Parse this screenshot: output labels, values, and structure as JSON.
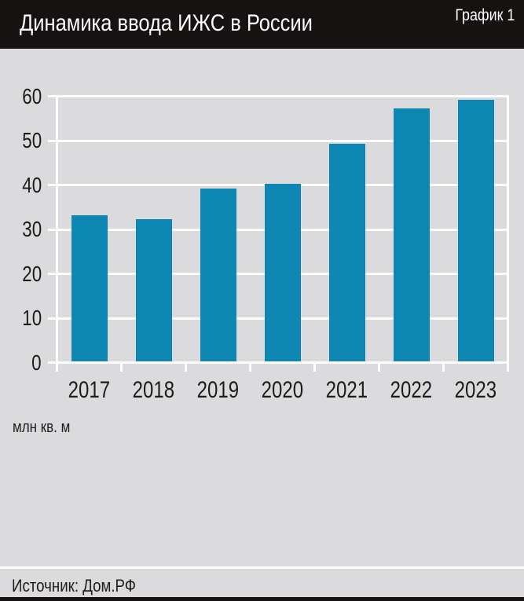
{
  "header": {
    "title": "Динамика ввода ИЖС в России",
    "tag": "График 1"
  },
  "chart_data": {
    "type": "bar",
    "title": "Динамика ввода ИЖС в России",
    "categories": [
      "2017",
      "2018",
      "2019",
      "2020",
      "2021",
      "2022",
      "2023"
    ],
    "values": [
      33,
      32,
      39,
      40,
      49,
      57,
      59
    ],
    "unit_label": "млн кв. м",
    "xlabel": "",
    "ylabel": "млн кв. м",
    "ylim": [
      0,
      60
    ],
    "yticks": [
      0,
      10,
      20,
      30,
      40,
      50,
      60
    ],
    "grid": true,
    "legend": false,
    "bar_color": "#0d86b1",
    "plot_background": "#dbdbdd",
    "gridline_color": "#ffffff"
  },
  "footer": {
    "source": "Источник: Дом.РФ"
  },
  "colors": {
    "header_background": "#171212",
    "header_text": "#ffffff",
    "page_background": "#dbdbdd",
    "text": "#1c1c1c",
    "bar": "#0d86b1",
    "gridline": "#ffffff"
  }
}
